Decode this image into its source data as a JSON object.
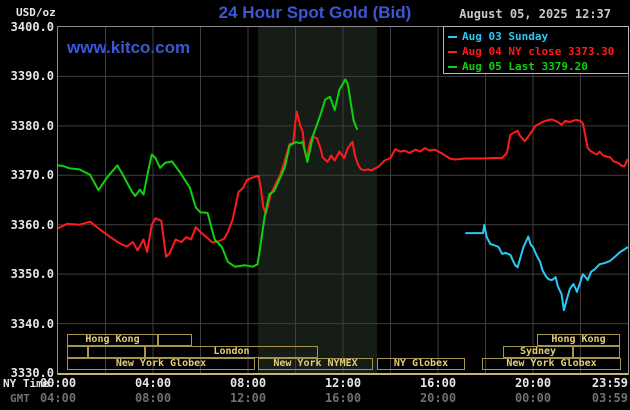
{
  "header": {
    "datetime": "August 05, 2025 12:37",
    "watermark": "www.kitco.com"
  },
  "axes": {
    "ny_time_label": "NY Time",
    "gmt_label": "GMT",
    "y_tick_labels": [
      "3400.0",
      "3390.0",
      "3380.0",
      "3370.0",
      "3360.0",
      "3350.0",
      "3340.0",
      "3330.0"
    ],
    "ny_ticks": [
      {
        "label": "00:00",
        "hour": 0
      },
      {
        "label": "04:00",
        "hour": 4
      },
      {
        "label": "08:00",
        "hour": 8
      },
      {
        "label": "12:00",
        "hour": 12
      },
      {
        "label": "16:00",
        "hour": 16
      },
      {
        "label": "20:00",
        "hour": 20
      },
      {
        "label": "23:59",
        "hour": 23.98
      }
    ],
    "gmt_ticks": [
      {
        "label": "04:00",
        "hour": 0
      },
      {
        "label": "08:00",
        "hour": 4
      },
      {
        "label": "12:00",
        "hour": 8
      },
      {
        "label": "16:00",
        "hour": 12
      },
      {
        "label": "20:00",
        "hour": 16
      },
      {
        "label": "00:00",
        "hour": 20
      },
      {
        "label": "03:59",
        "hour": 23.98
      }
    ]
  },
  "sessions": [
    {
      "row": 0,
      "start_h": 0.38,
      "end_h": 4.21,
      "label": "Hong Kong"
    },
    {
      "row": 0,
      "start_h": 4.21,
      "end_h": 5.64,
      "label": ""
    },
    {
      "row": 0,
      "start_h": 20.17,
      "end_h": 23.66,
      "label": "Hong Kong"
    },
    {
      "row": 1,
      "start_h": 0.38,
      "end_h": 1.26,
      "label": ""
    },
    {
      "row": 1,
      "start_h": 1.26,
      "end_h": 3.66,
      "label": ""
    },
    {
      "row": 1,
      "start_h": 3.66,
      "end_h": 10.95,
      "label": "London"
    },
    {
      "row": 1,
      "start_h": 18.74,
      "end_h": 21.68,
      "label": "Sydney"
    },
    {
      "row": 1,
      "start_h": 21.68,
      "end_h": 23.66,
      "label": ""
    },
    {
      "row": 2,
      "start_h": 0.38,
      "end_h": 8.29,
      "label": "New York Globex"
    },
    {
      "row": 2,
      "start_h": 8.42,
      "end_h": 13.26,
      "label": "New York NYMEX"
    },
    {
      "row": 2,
      "start_h": 13.43,
      "end_h": 17.14,
      "label": "NY Globex"
    },
    {
      "row": 2,
      "start_h": 17.85,
      "end_h": 23.7,
      "label": "New York Globex"
    }
  ],
  "chart_data": {
    "type": "line",
    "title": "24 Hour Spot Gold (Bid)",
    "ylabel": "USD/oz",
    "ylim": [
      3330,
      3400
    ],
    "x_hours": [
      0,
      24
    ],
    "y_grid_step": 10,
    "x_grid_step_hours": 2,
    "grid": true,
    "legend_position": "top-right",
    "nymex_band_hours": [
      8.42,
      13.43
    ],
    "series": [
      {
        "name": "Aug 03 Sunday",
        "legend": "Aug 03 Sunday",
        "color": "#29c9f4",
        "points": [
          [
            17.15,
            3358.3
          ],
          [
            17.9,
            3358.3
          ],
          [
            17.95,
            3360.0
          ],
          [
            18.05,
            3357.5
          ],
          [
            18.2,
            3356.1
          ],
          [
            18.35,
            3355.9
          ],
          [
            18.55,
            3355.5
          ],
          [
            18.7,
            3354.1
          ],
          [
            18.85,
            3354.3
          ],
          [
            19.05,
            3353.9
          ],
          [
            19.15,
            3352.8
          ],
          [
            19.25,
            3351.8
          ],
          [
            19.35,
            3351.4
          ],
          [
            19.45,
            3353.0
          ],
          [
            19.6,
            3355.5
          ],
          [
            19.8,
            3357.6
          ],
          [
            19.9,
            3356.0
          ],
          [
            20.0,
            3355.5
          ],
          [
            20.15,
            3353.8
          ],
          [
            20.3,
            3352.5
          ],
          [
            20.4,
            3350.8
          ],
          [
            20.55,
            3349.5
          ],
          [
            20.65,
            3349.0
          ],
          [
            20.8,
            3348.8
          ],
          [
            20.95,
            3349.4
          ],
          [
            21.05,
            3347.5
          ],
          [
            21.2,
            3346.0
          ],
          [
            21.3,
            3342.7
          ],
          [
            21.4,
            3344.5
          ],
          [
            21.55,
            3347.0
          ],
          [
            21.7,
            3348.0
          ],
          [
            21.8,
            3347.0
          ],
          [
            21.85,
            3346.4
          ],
          [
            22.0,
            3348.5
          ],
          [
            22.1,
            3350.0
          ],
          [
            22.25,
            3349.2
          ],
          [
            22.3,
            3348.8
          ],
          [
            22.45,
            3350.5
          ],
          [
            22.6,
            3351.0
          ],
          [
            22.8,
            3352.0
          ],
          [
            23.05,
            3352.3
          ],
          [
            23.25,
            3352.7
          ],
          [
            23.45,
            3353.5
          ],
          [
            23.65,
            3354.4
          ],
          [
            23.85,
            3355.0
          ],
          [
            23.99,
            3355.5
          ]
        ]
      },
      {
        "name": "Aug 04 NY close 3373.30",
        "legend": "Aug 04 NY close 3373.30",
        "color": "#ff1b1b",
        "close": 3373.3,
        "points": [
          [
            0,
            3359.3
          ],
          [
            0.4,
            3360.2
          ],
          [
            0.9,
            3360.0
          ],
          [
            1.35,
            3360.6
          ],
          [
            1.8,
            3358.9
          ],
          [
            2.2,
            3357.5
          ],
          [
            2.6,
            3356.2
          ],
          [
            2.9,
            3355.6
          ],
          [
            3.15,
            3356.5
          ],
          [
            3.35,
            3354.8
          ],
          [
            3.6,
            3357.0
          ],
          [
            3.75,
            3354.5
          ],
          [
            3.95,
            3360.0
          ],
          [
            4.1,
            3361.3
          ],
          [
            4.35,
            3360.8
          ],
          [
            4.55,
            3353.5
          ],
          [
            4.7,
            3354.2
          ],
          [
            4.95,
            3357.0
          ],
          [
            5.2,
            3356.5
          ],
          [
            5.4,
            3357.5
          ],
          [
            5.6,
            3357.0
          ],
          [
            5.8,
            3359.5
          ],
          [
            6.0,
            3358.5
          ],
          [
            6.25,
            3357.5
          ],
          [
            6.5,
            3356.4
          ],
          [
            6.75,
            3356.6
          ],
          [
            7.0,
            3357.2
          ],
          [
            7.15,
            3358.5
          ],
          [
            7.35,
            3361.0
          ],
          [
            7.6,
            3366.6
          ],
          [
            7.8,
            3367.5
          ],
          [
            7.95,
            3369.0
          ],
          [
            8.15,
            3369.5
          ],
          [
            8.3,
            3369.7
          ],
          [
            8.45,
            3369.9
          ],
          [
            8.55,
            3367.0
          ],
          [
            8.65,
            3363.5
          ],
          [
            8.75,
            3362.2
          ],
          [
            8.95,
            3366.0
          ],
          [
            9.15,
            3368.1
          ],
          [
            9.35,
            3370.0
          ],
          [
            9.55,
            3373.0
          ],
          [
            9.75,
            3376.3
          ],
          [
            9.9,
            3376.5
          ],
          [
            10.0,
            3381.0
          ],
          [
            10.05,
            3382.9
          ],
          [
            10.2,
            3380.0
          ],
          [
            10.3,
            3378.9
          ],
          [
            10.4,
            3374.7
          ],
          [
            10.5,
            3373.8
          ],
          [
            10.6,
            3376.5
          ],
          [
            10.7,
            3377.8
          ],
          [
            10.9,
            3377.5
          ],
          [
            11.05,
            3375.5
          ],
          [
            11.15,
            3373.6
          ],
          [
            11.35,
            3372.7
          ],
          [
            11.5,
            3374.0
          ],
          [
            11.65,
            3373.0
          ],
          [
            11.85,
            3374.8
          ],
          [
            12.05,
            3373.5
          ],
          [
            12.2,
            3375.5
          ],
          [
            12.4,
            3376.8
          ],
          [
            12.5,
            3374.0
          ],
          [
            12.65,
            3372.0
          ],
          [
            12.75,
            3371.3
          ],
          [
            12.9,
            3371.0
          ],
          [
            13.05,
            3371.2
          ],
          [
            13.2,
            3371.0
          ],
          [
            13.4,
            3371.5
          ],
          [
            13.55,
            3372.0
          ],
          [
            13.75,
            3373.0
          ],
          [
            14.0,
            3373.5
          ],
          [
            14.2,
            3375.3
          ],
          [
            14.4,
            3374.8
          ],
          [
            14.6,
            3375.0
          ],
          [
            14.8,
            3374.5
          ],
          [
            15.05,
            3375.2
          ],
          [
            15.25,
            3374.8
          ],
          [
            15.45,
            3375.5
          ],
          [
            15.65,
            3375.0
          ],
          [
            15.85,
            3375.2
          ],
          [
            16.1,
            3374.6
          ],
          [
            16.3,
            3374.0
          ],
          [
            16.5,
            3373.4
          ],
          [
            16.7,
            3373.2
          ],
          [
            16.95,
            3373.3
          ],
          [
            17.15,
            3373.4
          ],
          [
            17.55,
            3373.4
          ],
          [
            17.9,
            3373.4
          ],
          [
            18.3,
            3373.5
          ],
          [
            18.7,
            3373.5
          ],
          [
            18.9,
            3374.5
          ],
          [
            19.05,
            3378.2
          ],
          [
            19.15,
            3378.5
          ],
          [
            19.35,
            3379.0
          ],
          [
            19.45,
            3378.0
          ],
          [
            19.65,
            3376.9
          ],
          [
            19.9,
            3378.5
          ],
          [
            20.1,
            3380.0
          ],
          [
            20.3,
            3380.5
          ],
          [
            20.5,
            3381.0
          ],
          [
            20.8,
            3381.3
          ],
          [
            21.05,
            3380.8
          ],
          [
            21.2,
            3380.2
          ],
          [
            21.35,
            3381.0
          ],
          [
            21.55,
            3380.8
          ],
          [
            21.8,
            3381.2
          ],
          [
            22.0,
            3381.0
          ],
          [
            22.1,
            3380.5
          ],
          [
            22.2,
            3378.0
          ],
          [
            22.3,
            3375.6
          ],
          [
            22.4,
            3375.0
          ],
          [
            22.55,
            3374.5
          ],
          [
            22.7,
            3374.2
          ],
          [
            22.8,
            3374.8
          ],
          [
            22.95,
            3374.0
          ],
          [
            23.1,
            3373.8
          ],
          [
            23.25,
            3373.6
          ],
          [
            23.4,
            3372.8
          ],
          [
            23.6,
            3372.5
          ],
          [
            23.7,
            3372.0
          ],
          [
            23.85,
            3371.8
          ],
          [
            23.99,
            3373.3
          ]
        ]
      },
      {
        "name": "Aug 05 Last 3379.20",
        "legend": "Aug 05 Last 3379.20",
        "color": "#10d010",
        "last": 3379.2,
        "points": [
          [
            0,
            3372.0
          ],
          [
            0.2,
            3371.9
          ],
          [
            0.5,
            3371.4
          ],
          [
            0.9,
            3371.2
          ],
          [
            1.35,
            3370.1
          ],
          [
            1.7,
            3367.0
          ],
          [
            2.1,
            3369.8
          ],
          [
            2.5,
            3372.0
          ],
          [
            2.8,
            3369.5
          ],
          [
            3.1,
            3366.8
          ],
          [
            3.25,
            3365.8
          ],
          [
            3.45,
            3367.1
          ],
          [
            3.6,
            3366.1
          ],
          [
            3.8,
            3371.0
          ],
          [
            3.95,
            3374.2
          ],
          [
            4.1,
            3373.5
          ],
          [
            4.3,
            3371.5
          ],
          [
            4.5,
            3372.5
          ],
          [
            4.8,
            3372.8
          ],
          [
            5.15,
            3370.5
          ],
          [
            5.55,
            3367.5
          ],
          [
            5.8,
            3363.5
          ],
          [
            6.0,
            3362.5
          ],
          [
            6.3,
            3362.4
          ],
          [
            6.6,
            3357.0
          ],
          [
            6.9,
            3355.5
          ],
          [
            7.15,
            3352.5
          ],
          [
            7.45,
            3351.5
          ],
          [
            7.85,
            3351.8
          ],
          [
            8.2,
            3351.5
          ],
          [
            8.4,
            3352.0
          ],
          [
            8.5,
            3355.0
          ],
          [
            8.7,
            3361.6
          ],
          [
            8.9,
            3366.2
          ],
          [
            9.1,
            3366.8
          ],
          [
            9.35,
            3369.5
          ],
          [
            9.55,
            3371.6
          ],
          [
            9.75,
            3376.0
          ],
          [
            10.0,
            3376.7
          ],
          [
            10.2,
            3376.5
          ],
          [
            10.3,
            3376.8
          ],
          [
            10.5,
            3372.7
          ],
          [
            10.75,
            3378.2
          ],
          [
            11.05,
            3382.2
          ],
          [
            11.25,
            3385.3
          ],
          [
            11.45,
            3385.9
          ],
          [
            11.65,
            3383.2
          ],
          [
            11.85,
            3387.3
          ],
          [
            12.1,
            3389.4
          ],
          [
            12.2,
            3388.5
          ],
          [
            12.35,
            3384.0
          ],
          [
            12.45,
            3381.0
          ],
          [
            12.6,
            3379.2
          ]
        ]
      }
    ]
  },
  "colors": {
    "background": "#000000",
    "title": "#3a57d6",
    "watermark": "#3a57d6",
    "grid": "#3e3e3e",
    "plot_border": "#8a8a8a",
    "bottom_border": "#c3b873",
    "session_text": "#e3cc7a",
    "session_border": "#a5954c",
    "axis_text": "#e6e6e6",
    "gmt_text": "#707070",
    "date_text": "#c9c9c9",
    "band": "#161d16",
    "legend_border": "#b4b4b4"
  }
}
